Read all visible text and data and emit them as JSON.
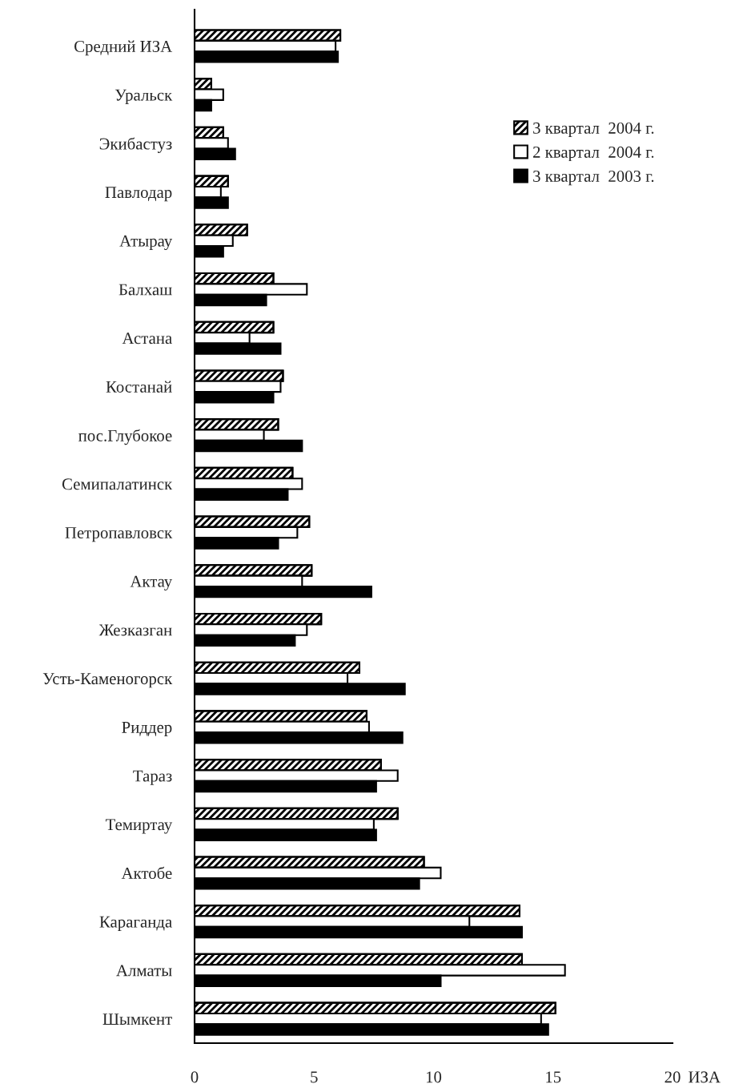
{
  "chart_data": {
    "type": "bar",
    "orientation": "horizontal",
    "xlabel": "ИЗА",
    "categories": [
      "Средний ИЗА",
      "Уральск",
      "Экибастуз",
      "Павлодар",
      "Атырау",
      "Балхаш",
      "Астана",
      "Костанай",
      "пос.Глубокое",
      "Семипалатинск",
      "Петропавловск",
      "Актау",
      "Жезказган",
      "Усть-Каменогорск",
      "Риддер",
      "Тараз",
      "Темиртау",
      "Актобе",
      "Караганда",
      "Алматы",
      "Шымкент"
    ],
    "series": [
      {
        "name": "3 квартал  2004 г.",
        "color": "#000000",
        "values": [
          6.1,
          0.7,
          1.2,
          1.4,
          2.2,
          3.3,
          3.3,
          3.7,
          3.5,
          4.1,
          4.8,
          4.9,
          5.3,
          6.9,
          7.2,
          7.8,
          8.5,
          9.6,
          13.6,
          13.7,
          15.1
        ]
      },
      {
        "name": "2 квартал  2004 г.",
        "color": "#ffffff",
        "values": [
          5.9,
          1.2,
          1.4,
          1.1,
          1.6,
          4.7,
          2.3,
          3.6,
          2.9,
          4.5,
          4.3,
          4.5,
          4.7,
          6.4,
          7.3,
          8.5,
          7.5,
          10.3,
          11.5,
          15.5,
          14.5
        ]
      },
      {
        "name": "3 квартал  2003 г.",
        "color": "#000000",
        "values": [
          6.0,
          0.7,
          1.7,
          1.4,
          1.2,
          3.0,
          3.6,
          3.3,
          4.5,
          3.9,
          3.5,
          7.4,
          4.2,
          8.8,
          8.7,
          7.6,
          7.6,
          9.4,
          13.7,
          10.3,
          14.8
        ]
      }
    ],
    "xlim": [
      0,
      20
    ],
    "xticks": [
      0,
      5,
      10,
      15,
      20
    ],
    "grid": false,
    "legend": "top right"
  }
}
